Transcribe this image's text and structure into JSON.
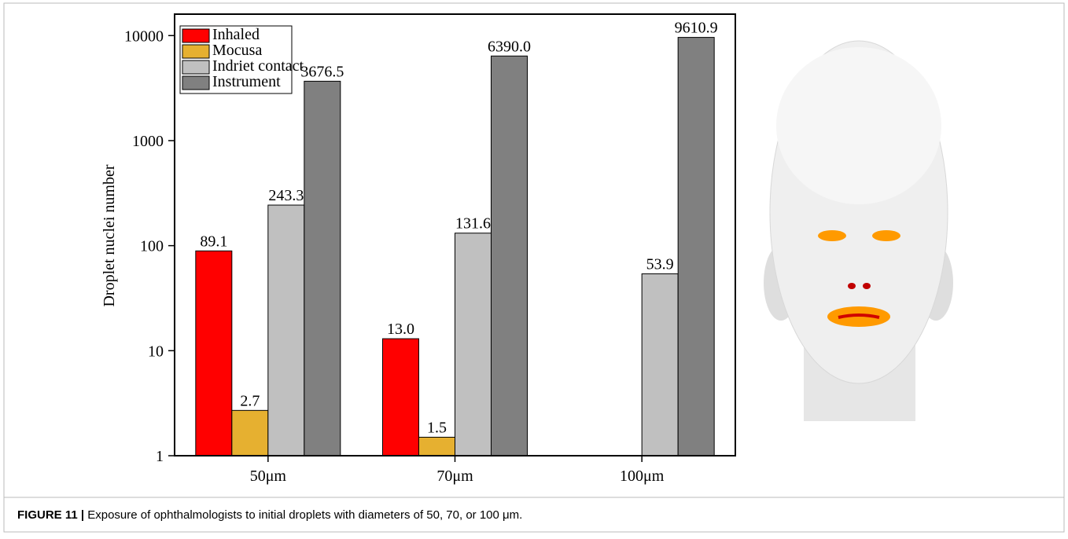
{
  "chart_data": {
    "type": "bar",
    "ylabel": "Droplet nuclei number",
    "categories": [
      "50μm",
      "70μm",
      "100μm"
    ],
    "series": [
      {
        "name": "Inhaled",
        "color": "#ff0000",
        "values": [
          89.1,
          13.0,
          null
        ],
        "value_labels": [
          "89.1",
          "13.0",
          null
        ]
      },
      {
        "name": "Mocusa",
        "color": "#e6b030",
        "values": [
          2.7,
          1.5,
          null
        ],
        "value_labels": [
          "2.7",
          "1.5",
          null
        ]
      },
      {
        "name": "Indriet contact",
        "color": "#c0c0c0",
        "values": [
          243.3,
          131.6,
          53.9
        ],
        "value_labels": [
          "243.3",
          "131.6",
          "53.9"
        ]
      },
      {
        "name": "Instrument",
        "color": "#808080",
        "values": [
          3676.5,
          6390.0,
          9610.9
        ],
        "value_labels": [
          "3676.5",
          "6390.0",
          "9610.9"
        ]
      }
    ],
    "ylim": [
      1,
      16000
    ],
    "yticks": [
      1,
      10,
      100,
      1000,
      10000
    ],
    "log_y": true,
    "legend": "upper left",
    "caption_label": "FIGURE 11 |",
    "caption": "Exposure of ophthalmologists to initial droplets with diameters of 50, 70, or 100 μm."
  }
}
